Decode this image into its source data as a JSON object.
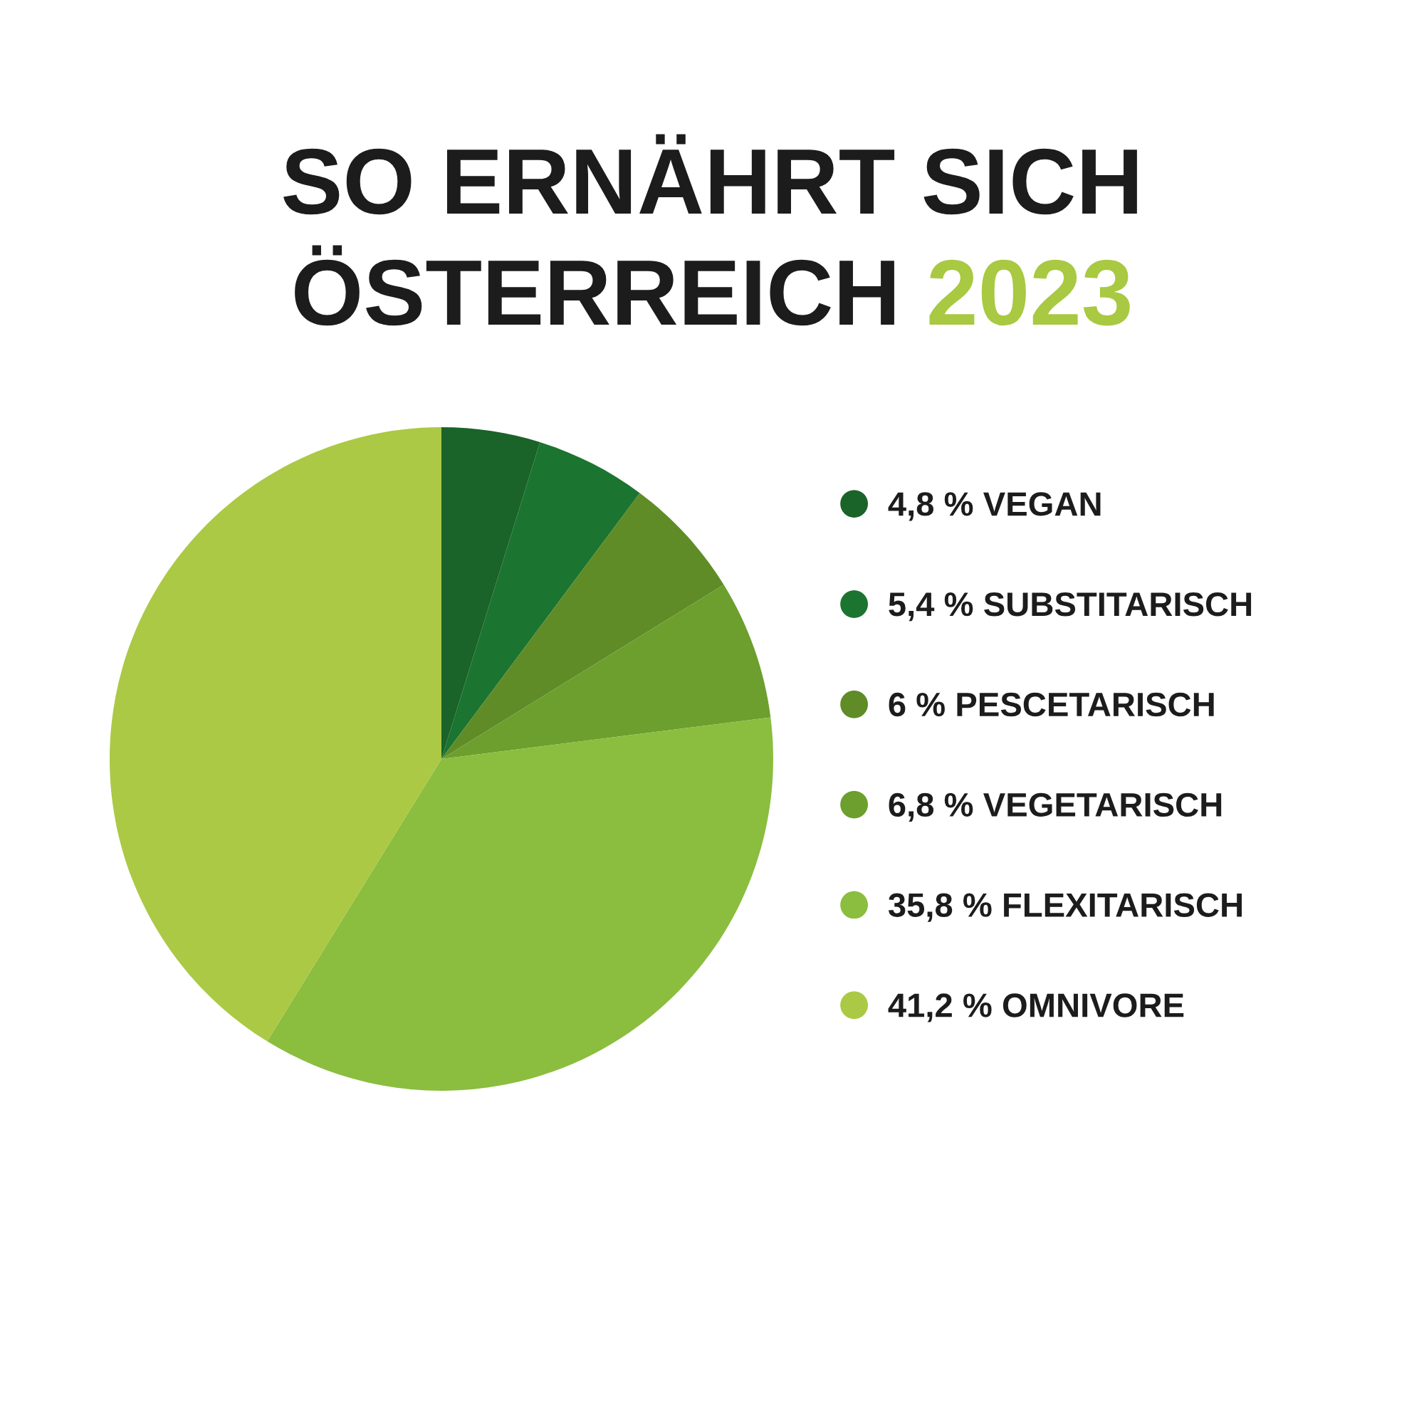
{
  "chart_data": {
    "type": "pie",
    "title": "SO ERNÄHRT SICH\nÖSTERREICH 2023",
    "categories": [
      "VEGAN",
      "SUBSTITARISCH",
      "PESCETARISCH",
      "VEGETARISCH",
      "FLEXITARISCH",
      "OMNIVORE"
    ],
    "values": [
      4.8,
      5.4,
      6,
      6.8,
      35.8,
      41.2
    ],
    "value_labels": [
      "4,8 %",
      "5,4 %",
      "6 %",
      "6,8 %",
      "35,8 %",
      "41,2 %"
    ],
    "colors": [
      "#1a6329",
      "#1b7430",
      "#5f8c27",
      "#6c9f2e",
      "#8bbd3f",
      "#abc944"
    ],
    "legend": "right"
  }
}
